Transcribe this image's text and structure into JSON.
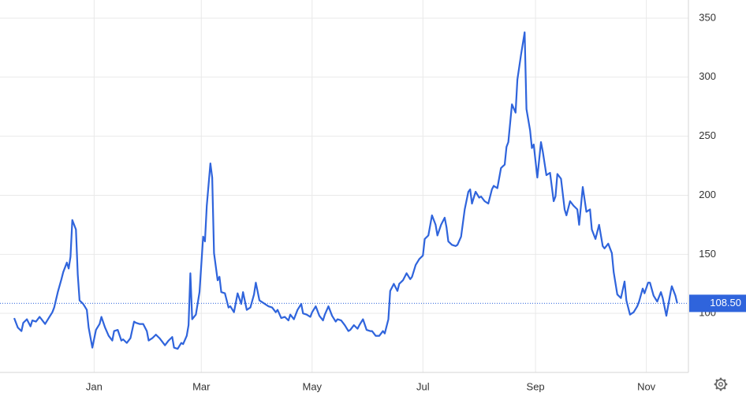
{
  "chart_data": {
    "type": "line",
    "x": [
      -44,
      -42,
      -40,
      -39,
      -37,
      -35,
      -34,
      -32,
      -30,
      -29,
      -27,
      -25,
      -23,
      -22,
      -20,
      -18,
      -17,
      -15,
      -14,
      -13,
      -12,
      -10,
      -9,
      -8,
      -6,
      -4,
      -3,
      -1,
      1,
      3,
      4,
      6,
      8,
      10,
      11,
      13,
      15,
      16,
      18,
      20,
      22,
      23,
      25,
      27,
      29,
      30,
      32,
      34,
      36,
      37,
      39,
      41,
      43,
      44,
      46,
      48,
      49,
      51,
      52,
      53,
      54,
      56,
      58,
      60,
      61,
      62,
      64,
      65,
      66,
      68,
      69,
      70,
      72,
      74,
      75,
      77,
      79,
      81,
      82,
      84,
      86,
      88,
      89,
      91,
      93,
      94,
      96,
      98,
      100,
      101,
      103,
      105,
      107,
      108,
      110,
      112,
      114,
      115,
      117,
      119,
      120,
      122,
      124,
      126,
      127,
      129,
      131,
      133,
      134,
      136,
      138,
      140,
      141,
      143,
      145,
      146,
      148,
      150,
      152,
      153,
      155,
      157,
      159,
      160,
      162,
      163,
      165,
      167,
      168,
      170,
      172,
      174,
      175,
      177,
      179,
      181,
      182,
      184,
      186,
      188,
      189,
      191,
      193,
      194,
      195,
      197,
      199,
      200,
      202,
      204,
      206,
      207,
      208,
      210,
      212,
      213,
      215,
      217,
      219,
      220,
      222,
      224,
      226,
      227,
      228,
      230,
      232,
      233,
      235,
      237,
      238,
      240,
      241,
      242,
      244,
      246,
      247,
      249,
      251,
      253,
      254,
      255,
      257,
      259,
      260,
      262,
      264,
      266,
      267,
      269,
      271,
      273,
      274,
      276,
      278,
      280,
      281,
      283,
      285,
      286,
      288,
      290,
      292,
      293,
      295,
      297,
      299,
      300,
      302,
      303,
      305,
      306,
      308,
      310,
      312,
      313,
      315,
      317,
      318,
      320,
      321
    ],
    "series": [
      {
        "color": "#2f64dc",
        "values": [
          96,
          88,
          85,
          92,
          95,
          89,
          94,
          93,
          97,
          95,
          91,
          96,
          101,
          105,
          118,
          129,
          135,
          143,
          138,
          148,
          179,
          171,
          133,
          111,
          108,
          103,
          88,
          71,
          86,
          91,
          97,
          88,
          81,
          77,
          85,
          86,
          77,
          78,
          75,
          79,
          93,
          92,
          91,
          91,
          85,
          77,
          79,
          82,
          79,
          77,
          73,
          77,
          80,
          71,
          70,
          75,
          74,
          81,
          90,
          134,
          95,
          99,
          118,
          165,
          161,
          191,
          227,
          215,
          151,
          128,
          131,
          118,
          117,
          105,
          106,
          101,
          117,
          108,
          118,
          103,
          105,
          116,
          126,
          111,
          109,
          108,
          106,
          105,
          101,
          103,
          96,
          97,
          94,
          99,
          95,
          103,
          108,
          100,
          99,
          97,
          101,
          106,
          98,
          94,
          99,
          106,
          98,
          93,
          95,
          94,
          90,
          85,
          86,
          90,
          87,
          90,
          95,
          86,
          85,
          85,
          81,
          81,
          85,
          83,
          95,
          119,
          125,
          119,
          125,
          128,
          134,
          129,
          131,
          141,
          146,
          149,
          163,
          166,
          183,
          175,
          166,
          175,
          181,
          173,
          161,
          158,
          157,
          158,
          165,
          188,
          203,
          205,
          193,
          203,
          198,
          199,
          195,
          193,
          205,
          208,
          206,
          223,
          226,
          241,
          245,
          277,
          270,
          298,
          319,
          338,
          273,
          255,
          240,
          243,
          215,
          245,
          237,
          217,
          219,
          195,
          199,
          218,
          214,
          188,
          183,
          195,
          191,
          188,
          175,
          207,
          186,
          188,
          171,
          163,
          175,
          157,
          155,
          159,
          151,
          135,
          116,
          113,
          127,
          111,
          99,
          101,
          106,
          110,
          121,
          117,
          126,
          126,
          115,
          110,
          118,
          113,
          98,
          115,
          123,
          115,
          108.5
        ]
      }
    ],
    "xlim": [
      -44,
      325
    ],
    "xticks": [
      {
        "value": 0,
        "label": "Jan"
      },
      {
        "value": 59,
        "label": "Mar"
      },
      {
        "value": 120,
        "label": "May"
      },
      {
        "value": 181,
        "label": "Jul"
      },
      {
        "value": 243,
        "label": "Sep"
      },
      {
        "value": 304,
        "label": "Nov"
      }
    ],
    "ylim": [
      50,
      365
    ],
    "yticks": [
      100,
      150,
      200,
      250,
      300,
      350
    ],
    "grid": true,
    "annotations": [
      {
        "value": 108.5,
        "label": "108.50"
      }
    ]
  }
}
